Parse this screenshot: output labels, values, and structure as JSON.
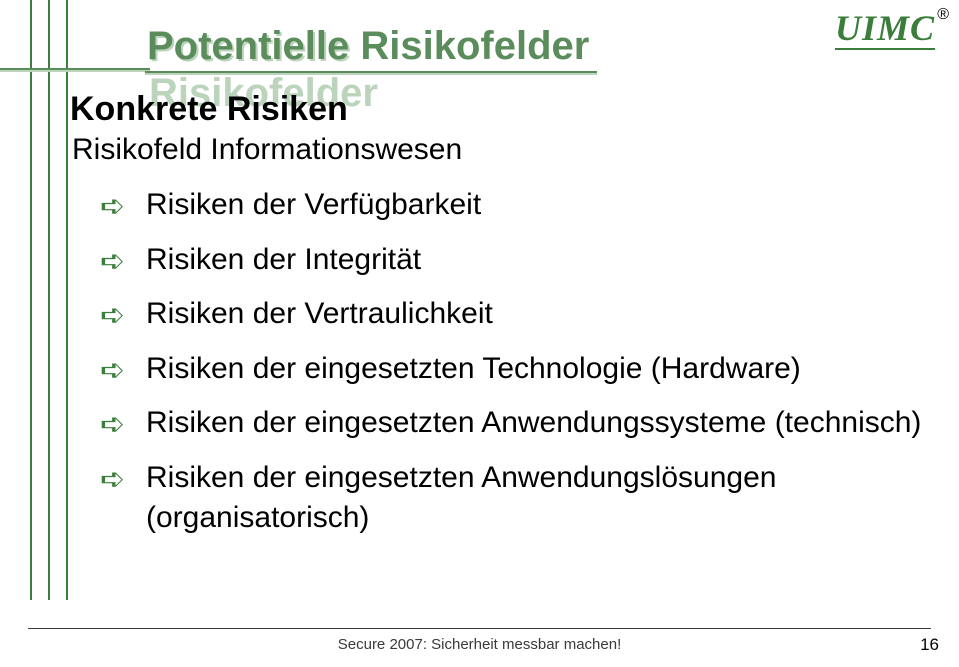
{
  "logo": {
    "text": "UIMC",
    "reg": "®",
    "text_color": "#3b7d3b"
  },
  "title": "Potentielle Risikofelder",
  "title_color": "#5b8c5b",
  "heading": "Konkrete Risiken",
  "subheading": "Risikofeld Informationswesen",
  "bullets": [
    "Risiken der Verfügbarkeit",
    "Risiken der Integrität",
    "Risiken der Vertraulichkeit",
    "Risiken der eingesetzten Technologie (Hardware)",
    "Risiken der eingesetzten Anwendungssysteme (technisch)",
    "Risiken der eingesetzten Anwendungslösungen (organisatorisch)"
  ],
  "footer": "Secure 2007: Sicherheit messbar machen!",
  "page_number": "16",
  "colors": {
    "green": "#3b7d3b",
    "title_green": "#5b8c5b",
    "title_shadow": "#bcd3bc",
    "background": "#ffffff"
  }
}
